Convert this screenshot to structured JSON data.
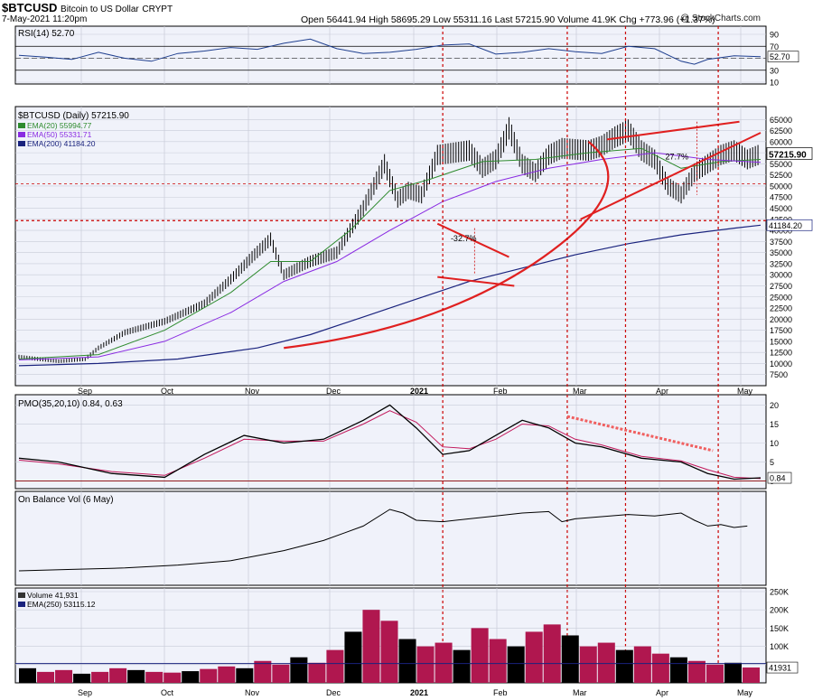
{
  "header": {
    "symbol": "$BTCUSD",
    "name": "Bitcoin to US Dollar",
    "exchange": "CRYPT",
    "datetime": "7-May-2021 11:20pm",
    "watermark": "@ StockCharts.com",
    "quote_line": "Open 56441.94  High 58695.29  Low 55311.16  Last 57215.90  Volume 41.9K  Chg +773.96 (+1.37%)"
  },
  "chart_data": [
    {
      "type": "line",
      "panel": "rsi",
      "legend": "RSI(14) 52.70",
      "y_ticks": [
        90,
        70,
        50,
        30,
        10
      ],
      "last_label": "52.70",
      "ylim": [
        10,
        90
      ],
      "levels": [
        70,
        30,
        50
      ],
      "series": [
        {
          "name": "RSI(14)",
          "x": [
            0,
            10,
            20,
            30,
            40,
            50,
            60,
            70,
            80,
            90,
            100,
            110,
            120,
            130,
            140,
            150,
            160,
            170,
            180,
            190,
            200,
            210,
            220,
            230,
            240,
            250,
            255,
            260,
            270,
            280
          ],
          "values": [
            55,
            52,
            48,
            60,
            50,
            45,
            58,
            62,
            68,
            65,
            75,
            82,
            66,
            58,
            60,
            65,
            72,
            74,
            57,
            60,
            66,
            61,
            58,
            70,
            66,
            45,
            40,
            48,
            54,
            52.7
          ]
        }
      ]
    },
    {
      "type": "line",
      "panel": "price",
      "title": "$BTCUSD (Daily) 57215.90",
      "legend": [
        "EMA(20) 55994.77",
        "EMA(50) 55331.71",
        "EMA(200) 41184.20"
      ],
      "y_ticks": [
        65000,
        62500,
        60000,
        57500,
        55000,
        52500,
        50000,
        47500,
        45000,
        42500,
        40000,
        37500,
        35000,
        32500,
        30000,
        27500,
        25000,
        22500,
        20000,
        17500,
        15000,
        12500,
        10000,
        7500
      ],
      "ylim": [
        5000,
        67500
      ],
      "price_label": "57215.90",
      "ema200_label": "41184.20",
      "x_labels": [
        "Sep",
        "Oct",
        "Nov",
        "Dec",
        "2021",
        "Feb",
        "Mar",
        "Apr",
        "May"
      ],
      "annotations": [
        "-32.7%",
        "27.7%"
      ],
      "series": [
        {
          "name": "Price",
          "x": [
            0,
            15,
            25,
            30,
            40,
            55,
            70,
            80,
            88,
            95,
            100,
            110,
            120,
            130,
            138,
            143,
            147,
            152,
            158,
            170,
            175,
            180,
            183,
            185,
            190,
            195,
            200,
            205,
            215,
            220,
            225,
            230,
            235,
            240,
            245,
            250,
            255,
            260,
            265,
            270,
            275,
            280
          ],
          "values": [
            11500,
            10500,
            11000,
            13500,
            17000,
            19500,
            23500,
            29000,
            34000,
            38000,
            30000,
            33000,
            35000,
            45000,
            55000,
            47000,
            49000,
            48000,
            57000,
            58000,
            54000,
            56000,
            60000,
            63000,
            55000,
            53000,
            57000,
            58500,
            58000,
            59000,
            61000,
            62500,
            58000,
            56000,
            50000,
            48000,
            53000,
            55000,
            57000,
            58000,
            56000,
            57216
          ]
        },
        {
          "name": "EMA(20)",
          "x": [
            0,
            30,
            55,
            80,
            95,
            110,
            125,
            140,
            155,
            175,
            195,
            215,
            235,
            250,
            265,
            280
          ],
          "values": [
            11000,
            12000,
            17500,
            26000,
            33000,
            33000,
            40000,
            49000,
            51500,
            55500,
            56000,
            57500,
            58500,
            54000,
            55500,
            55995
          ]
        },
        {
          "name": "EMA(50)",
          "x": [
            0,
            30,
            55,
            80,
            100,
            120,
            140,
            160,
            180,
            200,
            220,
            240,
            260,
            280
          ],
          "values": [
            10800,
            11500,
            15000,
            21500,
            28500,
            33000,
            40000,
            46500,
            51000,
            54000,
            56000,
            57500,
            56000,
            55332
          ]
        },
        {
          "name": "EMA(200)",
          "x": [
            0,
            30,
            60,
            90,
            110,
            130,
            150,
            170,
            190,
            210,
            230,
            250,
            270,
            280
          ],
          "values": [
            9500,
            10000,
            11000,
            13500,
            16500,
            20500,
            24500,
            28500,
            31500,
            34500,
            37000,
            39000,
            40500,
            41184
          ]
        }
      ]
    },
    {
      "type": "line",
      "panel": "pmo",
      "legend": "PMO(35,20,10) 0.84, 0.63",
      "y_ticks": [
        20,
        15,
        10,
        5,
        0
      ],
      "ylim": [
        -2,
        22
      ],
      "last_label": "0.84",
      "series": [
        {
          "name": "PMO",
          "x": [
            0,
            15,
            35,
            55,
            70,
            85,
            100,
            115,
            130,
            140,
            150,
            160,
            170,
            180,
            190,
            200,
            210,
            220,
            235,
            250,
            260,
            270,
            280
          ],
          "values": [
            6,
            5,
            2,
            1,
            7,
            12,
            10,
            11,
            16,
            20,
            14,
            7,
            8,
            12,
            16,
            14,
            10,
            9,
            6,
            5,
            2,
            0.5,
            0.84
          ]
        },
        {
          "name": "Signal",
          "x": [
            0,
            15,
            35,
            55,
            70,
            85,
            100,
            115,
            130,
            140,
            150,
            160,
            170,
            180,
            190,
            200,
            210,
            220,
            235,
            250,
            260,
            270,
            280
          ],
          "values": [
            5.5,
            4.5,
            2.5,
            1.5,
            6,
            11,
            10.5,
            10.5,
            15,
            18.5,
            15.5,
            9,
            8.5,
            11,
            15,
            14.5,
            11,
            9.5,
            6.5,
            5.3,
            3,
            1,
            0.63
          ]
        }
      ]
    },
    {
      "type": "line",
      "panel": "obv",
      "legend": "On Balance Vol (6 May)",
      "ylim": [
        0,
        100
      ],
      "series": [
        {
          "name": "OBV",
          "x": [
            0,
            20,
            40,
            60,
            80,
            100,
            115,
            130,
            140,
            145,
            150,
            160,
            170,
            180,
            190,
            200,
            205,
            210,
            220,
            230,
            240,
            250,
            255,
            260,
            265,
            270,
            275
          ],
          "values": [
            10,
            12,
            14,
            18,
            24,
            38,
            52,
            72,
            95,
            90,
            80,
            78,
            82,
            86,
            90,
            92,
            78,
            82,
            85,
            88,
            86,
            90,
            80,
            72,
            74,
            70,
            72
          ]
        }
      ]
    },
    {
      "type": "bar",
      "panel": "volume",
      "legend": [
        "Volume 41,931",
        "EMA(250) 53115.12"
      ],
      "y_ticks": [
        "250K",
        "200K",
        "150K",
        "100K",
        "50K"
      ],
      "ylim": [
        0,
        250000
      ],
      "last_label": "41931",
      "values": [
        40000,
        30000,
        35000,
        25000,
        30000,
        40000,
        35000,
        30000,
        28000,
        32000,
        38000,
        45000,
        40000,
        60000,
        50000,
        70000,
        55000,
        90000,
        140000,
        200000,
        170000,
        120000,
        100000,
        110000,
        90000,
        150000,
        120000,
        100000,
        140000,
        160000,
        130000,
        100000,
        110000,
        90000,
        100000,
        80000,
        70000,
        60000,
        50000,
        55000,
        42000
      ]
    }
  ]
}
